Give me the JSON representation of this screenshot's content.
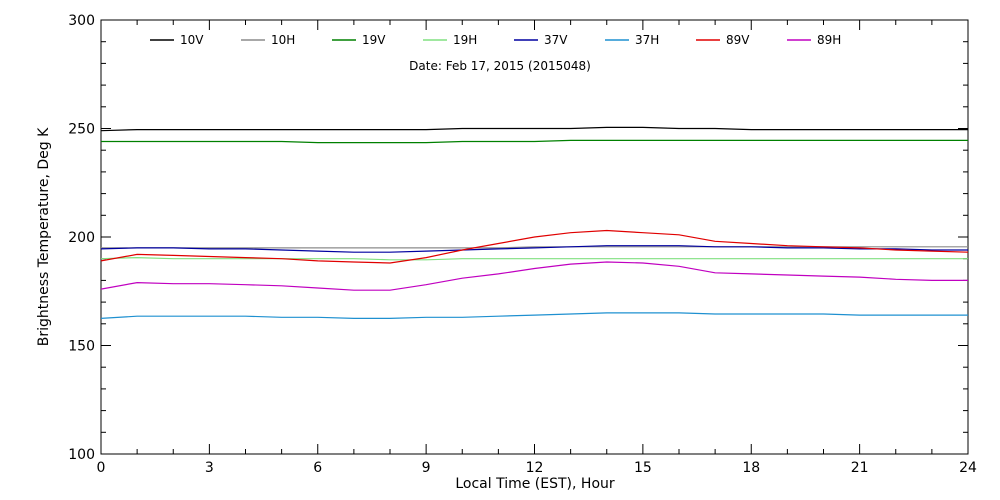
{
  "chart_data": {
    "type": "line",
    "title": "",
    "annotation": "Date: Feb 17, 2015 (2015048)",
    "xlabel": "Local Time (EST), Hour",
    "ylabel": "Brightness Temperature, Deg K",
    "xlim": [
      0,
      24
    ],
    "ylim": [
      100,
      300
    ],
    "xticks": [
      0,
      3,
      6,
      9,
      12,
      15,
      18,
      21,
      24
    ],
    "yticks": [
      100,
      150,
      200,
      250,
      300
    ],
    "grid": false,
    "legend_position": "top",
    "x": [
      0,
      1,
      2,
      3,
      4,
      5,
      6,
      7,
      8,
      9,
      10,
      11,
      12,
      13,
      14,
      15,
      16,
      17,
      18,
      19,
      20,
      21,
      22,
      23,
      24
    ],
    "series": [
      {
        "name": "10V",
        "color": "#000000",
        "values": [
          249,
          249.5,
          249.5,
          249.5,
          249.5,
          249.5,
          249.5,
          249.5,
          249.5,
          249.5,
          250,
          250,
          250,
          250,
          250.5,
          250.5,
          250,
          250,
          249.5,
          249.5,
          249.5,
          249.5,
          249.5,
          249.5,
          249.5
        ]
      },
      {
        "name": "10H",
        "color": "#8c8c8c",
        "values": [
          195,
          195,
          195,
          195,
          195,
          195,
          195,
          195,
          195,
          195,
          195,
          195,
          195.5,
          195.5,
          195.5,
          195.5,
          195.5,
          195.5,
          195.5,
          195.5,
          195.5,
          195.5,
          195.5,
          195.5,
          195.5
        ]
      },
      {
        "name": "19V",
        "color": "#008000",
        "values": [
          244,
          244,
          244,
          244,
          244,
          244,
          243.5,
          243.5,
          243.5,
          243.5,
          244,
          244,
          244,
          244.5,
          244.5,
          244.5,
          244.5,
          244.5,
          244.5,
          244.5,
          244.5,
          244.5,
          244.5,
          244.5,
          244.5
        ]
      },
      {
        "name": "19H",
        "color": "#80e080",
        "values": [
          190,
          190.5,
          190,
          190,
          190,
          190,
          190,
          190,
          189.5,
          189.5,
          190,
          190,
          190,
          190,
          190,
          190,
          190,
          190,
          190,
          190,
          190,
          190,
          190,
          190,
          190
        ]
      },
      {
        "name": "37V",
        "color": "#0000a0",
        "values": [
          194.5,
          195,
          195,
          194.5,
          194.5,
          194,
          193.5,
          193,
          193,
          193.5,
          194,
          194.5,
          195,
          195.5,
          196,
          196,
          196,
          195.5,
          195.5,
          195,
          195,
          194.5,
          194.5,
          194,
          194
        ]
      },
      {
        "name": "37H",
        "color": "#1e90d0",
        "values": [
          162.5,
          163.5,
          163.5,
          163.5,
          163.5,
          163,
          163,
          162.5,
          162.5,
          163,
          163,
          163.5,
          164,
          164.5,
          165,
          165,
          165,
          164.5,
          164.5,
          164.5,
          164.5,
          164,
          164,
          164,
          164
        ]
      },
      {
        "name": "89V",
        "color": "#e00000",
        "values": [
          189,
          192,
          191.5,
          191,
          190.5,
          190,
          189,
          188.5,
          188,
          190.5,
          194,
          197,
          200,
          202,
          203,
          202,
          201,
          198,
          197,
          196,
          195.5,
          195,
          194,
          193.5,
          193
        ]
      },
      {
        "name": "89H",
        "color": "#c000c0",
        "values": [
          176,
          179,
          178.5,
          178.5,
          178,
          177.5,
          176.5,
          175.5,
          175.5,
          178,
          181,
          183,
          185.5,
          187.5,
          188.5,
          188,
          186.5,
          183.5,
          183,
          182.5,
          182,
          181.5,
          180.5,
          180,
          180
        ]
      }
    ]
  }
}
